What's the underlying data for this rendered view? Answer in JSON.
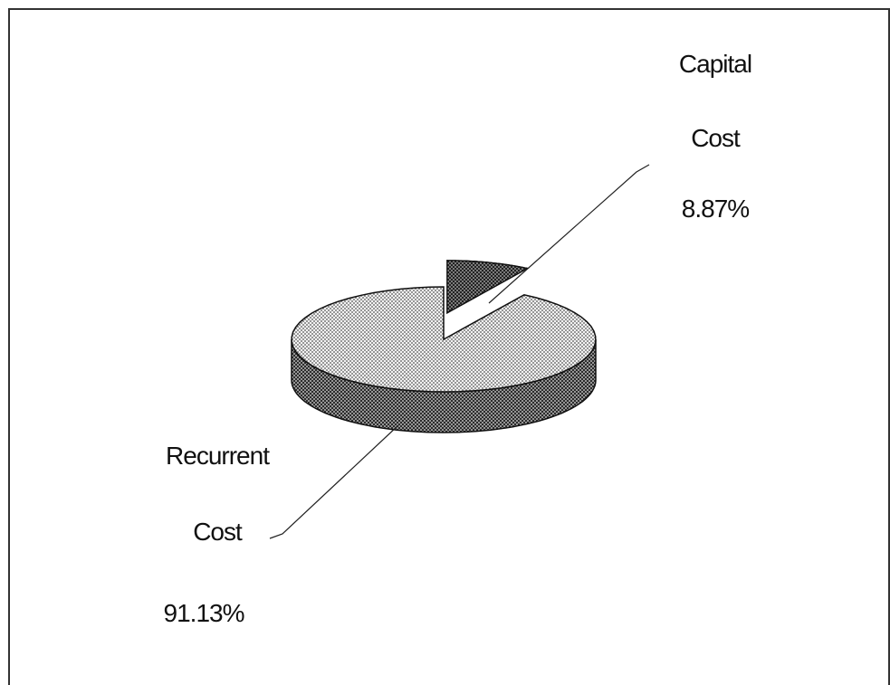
{
  "chart_data": {
    "type": "pie",
    "categories": [
      "Capital Cost",
      "Recurrent Cost"
    ],
    "values": [
      8.87,
      91.13
    ],
    "value_labels": [
      "8.87%",
      "91.13%"
    ],
    "colors": [
      "#333333",
      "#d8d8d8"
    ]
  }
}
